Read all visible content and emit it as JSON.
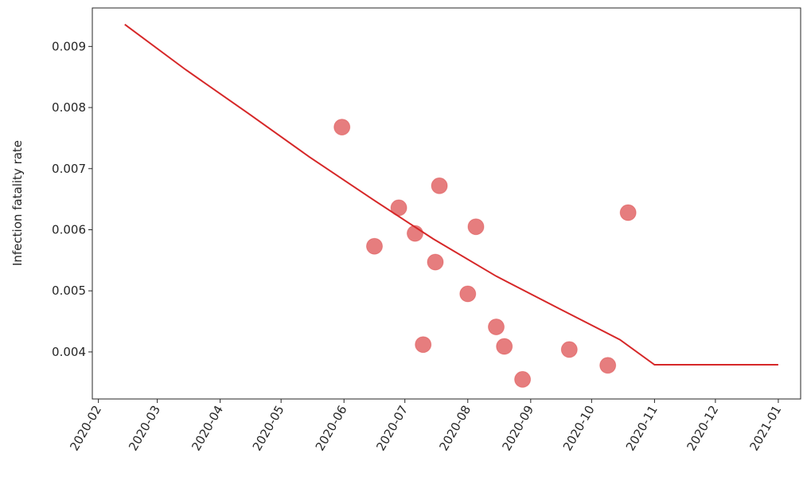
{
  "chart_data": {
    "type": "scatter",
    "title": "",
    "xlabel": "",
    "ylabel": "Infection fatality rate",
    "x_axis": {
      "type": "date",
      "range": [
        "2020-01-29",
        "2021-01-12"
      ],
      "ticks": [
        "2020-02-01",
        "2020-03-01",
        "2020-04-01",
        "2020-05-01",
        "2020-06-01",
        "2020-07-01",
        "2020-08-01",
        "2020-09-01",
        "2020-10-01",
        "2020-11-01",
        "2020-12-01",
        "2021-01-01"
      ],
      "tick_labels": [
        "2020-02",
        "2020-03",
        "2020-04",
        "2020-05",
        "2020-06",
        "2020-07",
        "2020-08",
        "2020-09",
        "2020-10",
        "2020-11",
        "2020-12",
        "2021-01"
      ]
    },
    "y_axis": {
      "range": [
        0.00323,
        0.00963
      ],
      "ticks": [
        0.004,
        0.005,
        0.006,
        0.007,
        0.008,
        0.009
      ],
      "tick_labels": [
        "0.004",
        "0.005",
        "0.006",
        "0.007",
        "0.008",
        "0.009"
      ]
    },
    "grid": false,
    "colors": {
      "points": "#d62728",
      "line": "#d62728"
    },
    "series": [
      {
        "kind": "points",
        "points": [
          {
            "x": "2020-05-31",
            "y": 0.00768
          },
          {
            "x": "2020-06-16",
            "y": 0.00573
          },
          {
            "x": "2020-06-28",
            "y": 0.00636
          },
          {
            "x": "2020-07-06",
            "y": 0.00594
          },
          {
            "x": "2020-07-10",
            "y": 0.00412
          },
          {
            "x": "2020-07-16",
            "y": 0.00547
          },
          {
            "x": "2020-07-18",
            "y": 0.00672
          },
          {
            "x": "2020-08-01",
            "y": 0.00495
          },
          {
            "x": "2020-08-05",
            "y": 0.00605
          },
          {
            "x": "2020-08-15",
            "y": 0.00441
          },
          {
            "x": "2020-08-19",
            "y": 0.00409
          },
          {
            "x": "2020-08-28",
            "y": 0.00355
          },
          {
            "x": "2020-09-20",
            "y": 0.00404
          },
          {
            "x": "2020-10-09",
            "y": 0.00378
          },
          {
            "x": "2020-10-19",
            "y": 0.00628
          }
        ]
      },
      {
        "kind": "line",
        "points": [
          {
            "x": "2020-02-14",
            "y": 0.00936
          },
          {
            "x": "2020-03-15",
            "y": 0.00862
          },
          {
            "x": "2020-04-15",
            "y": 0.0079
          },
          {
            "x": "2020-05-15",
            "y": 0.00719
          },
          {
            "x": "2020-06-15",
            "y": 0.0065
          },
          {
            "x": "2020-07-15",
            "y": 0.00585
          },
          {
            "x": "2020-08-15",
            "y": 0.00524
          },
          {
            "x": "2020-09-15",
            "y": 0.00471
          },
          {
            "x": "2020-10-15",
            "y": 0.0042
          },
          {
            "x": "2020-11-01",
            "y": 0.00379
          },
          {
            "x": "2021-01-01",
            "y": 0.00379
          }
        ]
      }
    ]
  }
}
